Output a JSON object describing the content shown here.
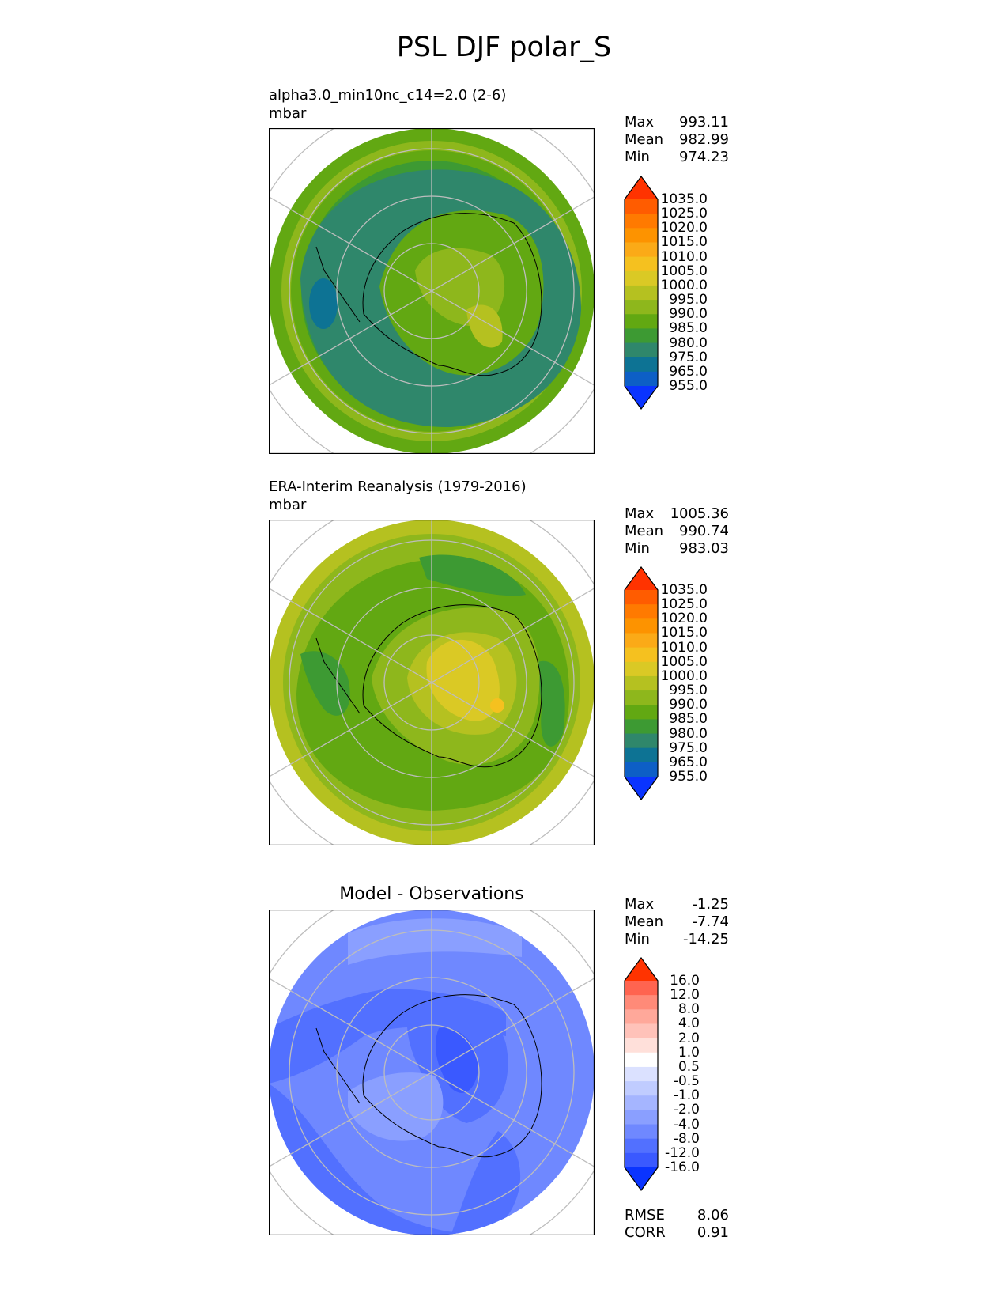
{
  "main_title": "PSL DJF polar_S",
  "panels": [
    {
      "id": "model",
      "title_line1": "alpha3.0_min10nc_c14=2.0 (2-6)",
      "title_line2": "mbar",
      "stats": [
        {
          "label": "Max",
          "value": "993.11"
        },
        {
          "label": "Mean",
          "value": "982.99"
        },
        {
          "label": "Min",
          "value": "974.23"
        }
      ]
    },
    {
      "id": "obs",
      "title_line1": "ERA-Interim Reanalysis (1979-2016)",
      "title_line2": "mbar",
      "stats": [
        {
          "label": "Max",
          "value": "1005.36"
        },
        {
          "label": "Mean",
          "value": "990.74"
        },
        {
          "label": "Min",
          "value": "983.03"
        }
      ]
    },
    {
      "id": "diff",
      "title_center": "Model - Observations",
      "stats": [
        {
          "label": "Max",
          "value": "-1.25"
        },
        {
          "label": "Mean",
          "value": "-7.74"
        },
        {
          "label": "Min",
          "value": "-14.25"
        }
      ],
      "extra_stats": [
        {
          "label": "RMSE",
          "value": "8.06"
        },
        {
          "label": "CORR",
          "value": "0.91"
        }
      ]
    }
  ],
  "colorbars": {
    "field": {
      "labels": [
        "1035.0",
        "1025.0",
        "1020.0",
        "1015.0",
        "1010.0",
        "1005.0",
        "1000.0",
        "995.0",
        "990.0",
        "985.0",
        "980.0",
        "975.0",
        "965.0",
        "955.0"
      ],
      "colors": [
        "#fe3a00",
        "#ff5c00",
        "#ff7a00",
        "#fd9300",
        "#fbaa17",
        "#f5c11f",
        "#dac925",
        "#b5c120",
        "#8eb71c",
        "#62a812",
        "#3d9a33",
        "#2f876b",
        "#0d7394",
        "#0d5fc6",
        "#0a40f0"
      ],
      "over_color": "#ff3300",
      "under_color": "#0a34ff"
    },
    "diff": {
      "labels": [
        "16.0",
        "12.0",
        "8.0",
        "4.0",
        "2.0",
        "1.0",
        "0.5",
        "-0.5",
        "-1.0",
        "-2.0",
        "-4.0",
        "-8.0",
        "-12.0",
        "-16.0"
      ],
      "colors": [
        "#ff4126",
        "#ff6450",
        "#ff8a78",
        "#ffa89a",
        "#ffc2b9",
        "#ffe0da",
        "#ffffff",
        "#dbe1ff",
        "#c0ccff",
        "#a5b5ff",
        "#8a9fff",
        "#6f88ff",
        "#5270ff",
        "#3a59ff",
        "#1f44ff"
      ],
      "over_color": "#ff3300",
      "under_color": "#0a34ff"
    }
  },
  "chart_data": [
    {
      "type": "heatmap",
      "title": "alpha3.0_min10nc_c14=2.0 (2-6)",
      "units": "mbar",
      "projection": "south-polar-stereographic",
      "levels": [
        955,
        965,
        975,
        980,
        985,
        990,
        995,
        1000,
        1005,
        1010,
        1015,
        1020,
        1025,
        1035
      ],
      "max": 993.11,
      "mean": 982.99,
      "min": 974.23
    },
    {
      "type": "heatmap",
      "title": "ERA-Interim Reanalysis (1979-2016)",
      "units": "mbar",
      "projection": "south-polar-stereographic",
      "levels": [
        955,
        965,
        975,
        980,
        985,
        990,
        995,
        1000,
        1005,
        1010,
        1015,
        1020,
        1025,
        1035
      ],
      "max": 1005.36,
      "mean": 990.74,
      "min": 983.03
    },
    {
      "type": "heatmap",
      "title": "Model - Observations",
      "projection": "south-polar-stereographic",
      "levels": [
        -16,
        -12,
        -8,
        -4,
        -2,
        -1,
        -0.5,
        0.5,
        1,
        2,
        4,
        8,
        12,
        16
      ],
      "max": -1.25,
      "mean": -7.74,
      "min": -14.25,
      "rmse": 8.06,
      "corr": 0.91
    }
  ]
}
